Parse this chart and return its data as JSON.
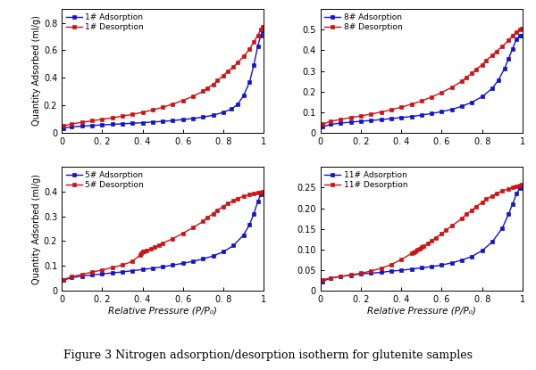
{
  "figure_caption": "Figure 3 Nitrogen adsorption/desorption isotherm for glutenite samples",
  "panels": [
    {
      "label": "1#",
      "ylim": [
        0,
        0.9
      ],
      "yticks": [
        0.0,
        0.2,
        0.4,
        0.6,
        0.8
      ],
      "yticklabels": [
        "0",
        "0.2",
        "0.4",
        "0.6",
        "0.8"
      ],
      "adsorption_x": [
        0.01,
        0.05,
        0.1,
        0.15,
        0.2,
        0.25,
        0.3,
        0.35,
        0.4,
        0.45,
        0.5,
        0.55,
        0.6,
        0.65,
        0.7,
        0.75,
        0.8,
        0.84,
        0.87,
        0.9,
        0.93,
        0.95,
        0.97,
        0.985,
        0.995
      ],
      "adsorption_y": [
        0.033,
        0.042,
        0.047,
        0.052,
        0.056,
        0.06,
        0.064,
        0.068,
        0.072,
        0.077,
        0.082,
        0.088,
        0.095,
        0.103,
        0.113,
        0.127,
        0.148,
        0.172,
        0.205,
        0.27,
        0.37,
        0.49,
        0.63,
        0.71,
        0.74
      ],
      "desorption_x": [
        0.995,
        0.985,
        0.97,
        0.95,
        0.93,
        0.9,
        0.87,
        0.85,
        0.82,
        0.8,
        0.77,
        0.75,
        0.72,
        0.7,
        0.65,
        0.6,
        0.55,
        0.5,
        0.45,
        0.4,
        0.35,
        0.3,
        0.25,
        0.2,
        0.15,
        0.1,
        0.05,
        0.01
      ],
      "desorption_y": [
        0.775,
        0.75,
        0.71,
        0.66,
        0.61,
        0.555,
        0.51,
        0.48,
        0.445,
        0.415,
        0.38,
        0.352,
        0.325,
        0.302,
        0.265,
        0.235,
        0.208,
        0.185,
        0.165,
        0.148,
        0.133,
        0.12,
        0.108,
        0.097,
        0.086,
        0.075,
        0.063,
        0.048
      ]
    },
    {
      "label": "8#",
      "ylim": [
        0,
        0.6
      ],
      "yticks": [
        0.0,
        0.1,
        0.2,
        0.3,
        0.4,
        0.5
      ],
      "yticklabels": [
        "0",
        "0.1",
        "0.2",
        "0.3",
        "0.4",
        "0.5"
      ],
      "adsorption_x": [
        0.01,
        0.05,
        0.1,
        0.15,
        0.2,
        0.25,
        0.3,
        0.35,
        0.4,
        0.45,
        0.5,
        0.55,
        0.6,
        0.65,
        0.7,
        0.75,
        0.8,
        0.85,
        0.88,
        0.91,
        0.93,
        0.95,
        0.97,
        0.985,
        0.995
      ],
      "adsorption_y": [
        0.028,
        0.04,
        0.046,
        0.051,
        0.055,
        0.059,
        0.063,
        0.068,
        0.073,
        0.078,
        0.085,
        0.093,
        0.102,
        0.113,
        0.128,
        0.148,
        0.175,
        0.215,
        0.255,
        0.31,
        0.358,
        0.408,
        0.455,
        0.47,
        0.472
      ],
      "desorption_x": [
        0.995,
        0.985,
        0.97,
        0.95,
        0.93,
        0.9,
        0.87,
        0.85,
        0.82,
        0.8,
        0.77,
        0.75,
        0.72,
        0.7,
        0.65,
        0.6,
        0.55,
        0.5,
        0.45,
        0.4,
        0.35,
        0.3,
        0.25,
        0.2,
        0.15,
        0.1,
        0.05,
        0.01
      ],
      "desorption_y": [
        0.505,
        0.5,
        0.49,
        0.472,
        0.448,
        0.42,
        0.395,
        0.375,
        0.352,
        0.33,
        0.308,
        0.288,
        0.268,
        0.25,
        0.22,
        0.195,
        0.173,
        0.154,
        0.138,
        0.124,
        0.111,
        0.1,
        0.09,
        0.081,
        0.073,
        0.064,
        0.055,
        0.04
      ]
    },
    {
      "label": "5#",
      "ylim": [
        0,
        0.5
      ],
      "yticks": [
        0.0,
        0.1,
        0.2,
        0.3,
        0.4
      ],
      "yticklabels": [
        "0",
        "0.1",
        "0.2",
        "0.3",
        "0.4"
      ],
      "adsorption_x": [
        0.01,
        0.05,
        0.1,
        0.15,
        0.2,
        0.25,
        0.3,
        0.35,
        0.4,
        0.45,
        0.5,
        0.55,
        0.6,
        0.65,
        0.7,
        0.75,
        0.8,
        0.85,
        0.9,
        0.93,
        0.95,
        0.97,
        0.985,
        0.995
      ],
      "adsorption_y": [
        0.042,
        0.052,
        0.058,
        0.063,
        0.067,
        0.071,
        0.075,
        0.08,
        0.085,
        0.09,
        0.096,
        0.103,
        0.11,
        0.118,
        0.128,
        0.14,
        0.157,
        0.182,
        0.225,
        0.268,
        0.31,
        0.36,
        0.39,
        0.398
      ],
      "desorption_x": [
        0.995,
        0.985,
        0.97,
        0.95,
        0.93,
        0.9,
        0.87,
        0.85,
        0.82,
        0.8,
        0.77,
        0.75,
        0.72,
        0.7,
        0.65,
        0.6,
        0.55,
        0.5,
        0.48,
        0.46,
        0.44,
        0.42,
        0.405,
        0.4,
        0.395,
        0.39,
        0.35,
        0.3,
        0.25,
        0.2,
        0.15,
        0.1,
        0.05,
        0.01
      ],
      "desorption_y": [
        0.4,
        0.398,
        0.395,
        0.392,
        0.388,
        0.382,
        0.373,
        0.364,
        0.352,
        0.34,
        0.326,
        0.311,
        0.296,
        0.28,
        0.255,
        0.232,
        0.21,
        0.192,
        0.183,
        0.175,
        0.168,
        0.163,
        0.16,
        0.157,
        0.152,
        0.145,
        0.118,
        0.103,
        0.093,
        0.083,
        0.074,
        0.065,
        0.056,
        0.044
      ]
    },
    {
      "label": "11#",
      "ylim": [
        0,
        0.3
      ],
      "yticks": [
        0.0,
        0.05,
        0.1,
        0.15,
        0.2,
        0.25
      ],
      "yticklabels": [
        "0",
        "0.05",
        "0.10",
        "0.15",
        "0.20",
        "0.25"
      ],
      "adsorption_x": [
        0.01,
        0.05,
        0.1,
        0.15,
        0.2,
        0.25,
        0.3,
        0.35,
        0.4,
        0.45,
        0.5,
        0.55,
        0.6,
        0.65,
        0.7,
        0.75,
        0.8,
        0.85,
        0.9,
        0.93,
        0.95,
        0.97,
        0.985,
        0.995
      ],
      "adsorption_y": [
        0.022,
        0.03,
        0.034,
        0.037,
        0.04,
        0.042,
        0.044,
        0.047,
        0.049,
        0.052,
        0.055,
        0.058,
        0.062,
        0.067,
        0.074,
        0.083,
        0.097,
        0.118,
        0.152,
        0.185,
        0.21,
        0.235,
        0.248,
        0.252
      ],
      "desorption_x": [
        0.995,
        0.985,
        0.97,
        0.95,
        0.93,
        0.9,
        0.87,
        0.85,
        0.82,
        0.8,
        0.77,
        0.75,
        0.72,
        0.7,
        0.65,
        0.62,
        0.6,
        0.57,
        0.55,
        0.53,
        0.51,
        0.5,
        0.49,
        0.48,
        0.47,
        0.46,
        0.45,
        0.4,
        0.35,
        0.3,
        0.25,
        0.2,
        0.15,
        0.1,
        0.05,
        0.01
      ],
      "desorption_y": [
        0.258,
        0.256,
        0.253,
        0.25,
        0.247,
        0.242,
        0.236,
        0.23,
        0.222,
        0.214,
        0.204,
        0.195,
        0.185,
        0.175,
        0.157,
        0.146,
        0.138,
        0.128,
        0.121,
        0.114,
        0.108,
        0.105,
        0.102,
        0.099,
        0.096,
        0.093,
        0.09,
        0.075,
        0.063,
        0.054,
        0.047,
        0.042,
        0.038,
        0.034,
        0.03,
        0.026
      ]
    }
  ],
  "adsorption_color": "#1414CC",
  "desorption_color": "#CC1414",
  "marker": "s",
  "markersize": 3.2,
  "linewidth": 1.0,
  "xlabel": "Relative Pressure (P/P₀)",
  "ylabel": "Quantity Adsorbed (ml/g)",
  "xticks": [
    0.0,
    0.2,
    0.4,
    0.6,
    0.8,
    1.0
  ],
  "xticklabels": [
    "0",
    "0. 2",
    "0. 4",
    "0. 6",
    "0. 8",
    "1"
  ],
  "tick_fontsize": 7,
  "label_fontsize": 7,
  "xlabel_fontsize": 7.5,
  "legend_fontsize": 6.5,
  "caption_fontsize": 9,
  "background_color": "#ffffff"
}
